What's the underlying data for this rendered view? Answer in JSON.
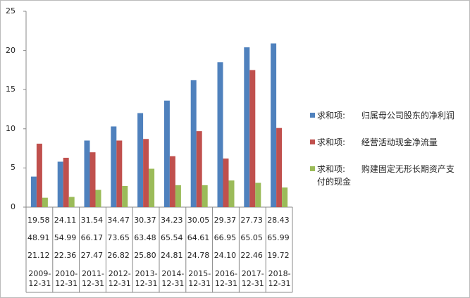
{
  "chart_data": {
    "type": "bar",
    "categories": [
      "2009-12-31",
      "2010-12-31",
      "2011-12-31",
      "2012-12-31",
      "2013-12-31",
      "2014-12-31",
      "2015-12-31",
      "2016-12-31",
      "2017-12-31",
      "2018-12-31"
    ],
    "series": [
      {
        "name": "求和项:      归属母公司股东的净利润",
        "color": "#4f81bd",
        "values": [
          3.9,
          5.8,
          8.5,
          10.3,
          12.0,
          13.6,
          16.2,
          18.5,
          20.4,
          20.9
        ]
      },
      {
        "name": "求和项:      经营活动现金净流量",
        "color": "#c0504d",
        "values": [
          8.1,
          6.3,
          7.0,
          8.5,
          8.7,
          6.5,
          9.7,
          6.2,
          17.5,
          10.1
        ]
      },
      {
        "name": "求和项:      购建固定无形长期资产支付的现金",
        "color": "#9bbb59",
        "values": [
          1.2,
          1.3,
          2.2,
          2.7,
          4.9,
          2.8,
          2.8,
          3.4,
          3.1,
          2.5
        ]
      }
    ],
    "table_rows": [
      [
        "19.58",
        "24.11",
        "31.54",
        "34.47",
        "30.37",
        "34.23",
        "30.05",
        "29.37",
        "27.73",
        "28.43"
      ],
      [
        "48.91",
        "54.99",
        "66.17",
        "73.65",
        "63.48",
        "65.54",
        "64.61",
        "66.95",
        "65.05",
        "65.99"
      ],
      [
        "21.12",
        "22.36",
        "27.47",
        "26.82",
        "25.80",
        "24.81",
        "24.78",
        "24.10",
        "22.46",
        "19.72"
      ]
    ],
    "ylim": [
      0,
      25
    ],
    "yticks": [
      0,
      5,
      10,
      15,
      20,
      25
    ],
    "legend": "right"
  }
}
